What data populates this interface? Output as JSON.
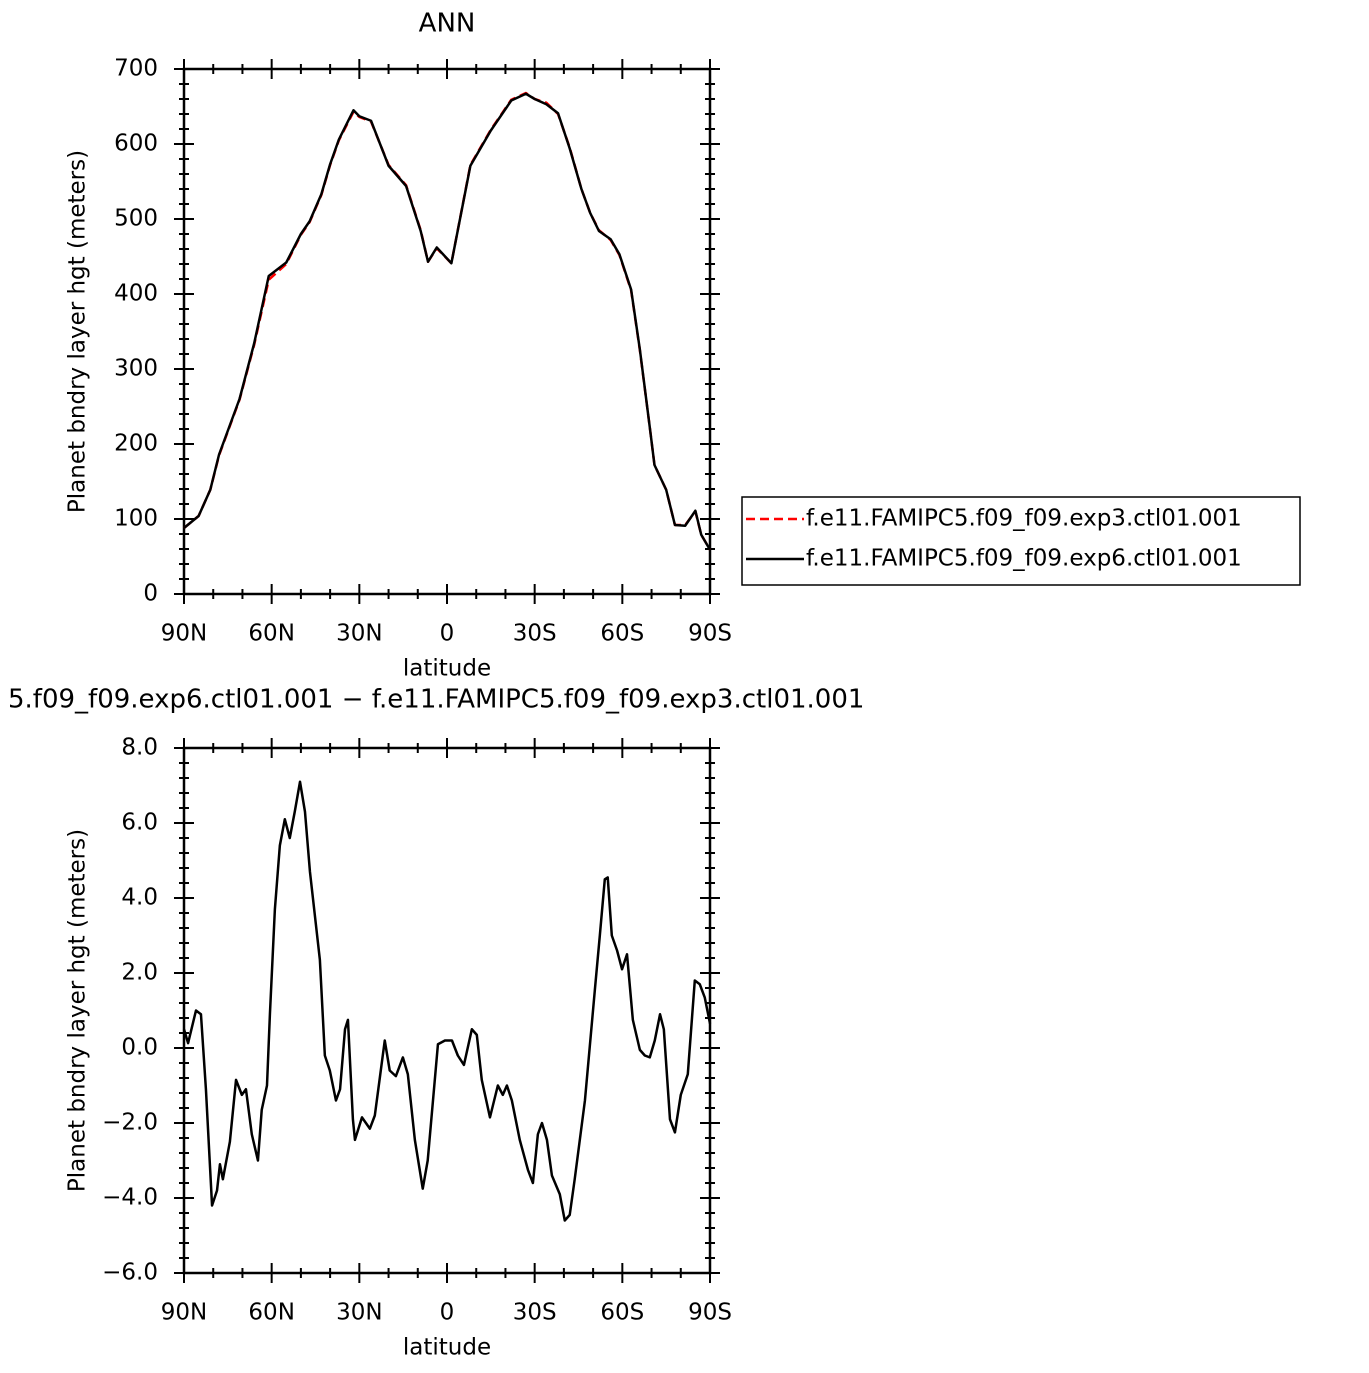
{
  "chart_data": [
    {
      "type": "line",
      "title": "ANN",
      "xlabel": "latitude",
      "ylabel": "Planet bndry layer hgt (meters)",
      "x": [
        90,
        85,
        81,
        78,
        71,
        66,
        61,
        55,
        50,
        47,
        43,
        40,
        37,
        32,
        30,
        26,
        20,
        14,
        9,
        6.5,
        3.5,
        -1.5,
        -8,
        -15,
        -22,
        -27,
        -30,
        -34,
        -38,
        -42,
        -46,
        -49,
        -52,
        -56,
        -59,
        -63,
        -66,
        -69.5,
        -71,
        -75,
        -78,
        -81.5,
        -85,
        -87,
        -90
      ],
      "xlim": [
        90,
        -90
      ],
      "xticks": [
        {
          "value": 90,
          "label": "90N"
        },
        {
          "value": 60,
          "label": "60N"
        },
        {
          "value": 30,
          "label": "30N"
        },
        0,
        {
          "value": -30,
          "label": "30S"
        },
        {
          "value": -60,
          "label": "60S"
        },
        {
          "value": -90,
          "label": "90S"
        }
      ],
      "ylim": [
        0,
        700
      ],
      "yticks": [
        0,
        100,
        200,
        300,
        400,
        500,
        600,
        700
      ],
      "legend": "right",
      "series": [
        {
          "name": "f.e11.FAMIPC5.f09_f09.exp3.ctl01.001",
          "color": "#ff0000",
          "linestyle": "dashed",
          "values": [
            88,
            104,
            139,
            185,
            259,
            332,
            419,
            440,
            479,
            496,
            532,
            572,
            605,
            643,
            636,
            630,
            572,
            545,
            485,
            443,
            461,
            441,
            572,
            619,
            659,
            668,
            660,
            655,
            640,
            595,
            540,
            508,
            485,
            472,
            452,
            405,
            325,
            219,
            172,
            139,
            92,
            92,
            110,
            79,
            59
          ]
        },
        {
          "name": "f.e11.FAMIPC5.f09_f09.exp6.ctl01.001",
          "color": "#000000",
          "linestyle": "solid",
          "values": [
            88,
            104,
            139,
            186,
            260,
            334,
            424,
            442,
            480,
            497,
            533,
            573,
            606,
            645,
            637,
            631,
            571,
            544,
            484,
            443,
            462,
            441,
            571,
            618,
            658,
            667,
            660,
            653,
            641,
            594,
            540,
            508,
            484,
            473,
            453,
            406,
            326,
            219,
            172,
            139,
            92,
            91,
            111,
            79,
            59
          ]
        }
      ]
    },
    {
      "type": "line",
      "title": "5.f09_f09.exp6.ctl01.001 − f.e11.FAMIPC5.f09_f09.exp3.ctl01.001",
      "xlabel": "latitude",
      "ylabel": "Planet bndry layer hgt (meters)",
      "x": [
        90,
        88.6,
        85.9,
        84.2,
        82.5,
        80.4,
        78.7,
        77.7,
        76.7,
        74.3,
        72.2,
        70.2,
        68.8,
        66.8,
        64.7,
        63.4,
        61.6,
        60.6,
        58.9,
        57.2,
        55.5,
        53.8,
        52.1,
        50.3,
        48.6,
        46.9,
        43.5,
        41.8,
        40.1,
        38.0,
        36.6,
        34.9,
        33.9,
        32.2,
        31.5,
        29.1,
        26.4,
        24.7,
        21.3,
        19.6,
        17.5,
        15.1,
        13.4,
        11.0,
        8.3,
        6.6,
        3.1,
        0.7,
        -1.7,
        -3.7,
        -5.8,
        -8.5,
        -10.2,
        -11.9,
        -14.7,
        -17.4,
        -19.1,
        -20.5,
        -22.2,
        -24.9,
        -27.7,
        -29.4,
        -31.1,
        -32.5,
        -34.2,
        -35.9,
        -38.6,
        -40.3,
        -42.0,
        -43.7,
        -47.2,
        -50.6,
        -52.3,
        -54.0,
        -55.0,
        -56.4,
        -58.2,
        -59.9,
        -61.6,
        -63.6,
        -66.0,
        -67.7,
        -69.4,
        -71.1,
        -72.9,
        -74.2,
        -76.3,
        -78.0,
        -80.0,
        -82.4,
        -84.8,
        -86.5,
        -88.2,
        -90
      ],
      "xlim": [
        90,
        -90
      ],
      "xticks": [
        {
          "value": 90,
          "label": "90N"
        },
        {
          "value": 60,
          "label": "60N"
        },
        {
          "value": 30,
          "label": "30N"
        },
        0,
        {
          "value": -30,
          "label": "30S"
        },
        {
          "value": -60,
          "label": "60S"
        },
        {
          "value": -90,
          "label": "90S"
        }
      ],
      "ylim": [
        -6,
        8
      ],
      "yticks": [
        {
          "value": -6,
          "label": "−6.0"
        },
        {
          "value": -4,
          "label": "−4.0"
        },
        {
          "value": -2,
          "label": "−2.0"
        },
        {
          "value": 0,
          "label": "0.0"
        },
        {
          "value": 2,
          "label": "2.0"
        },
        {
          "value": 4,
          "label": "4.0"
        },
        {
          "value": 6,
          "label": "6.0"
        },
        {
          "value": 8,
          "label": "8.0"
        }
      ],
      "series": [
        {
          "color": "#000000",
          "linestyle": "solid",
          "values": [
            0.5,
            0.13,
            1.0,
            0.9,
            -1.1,
            -4.2,
            -3.8,
            -3.1,
            -3.5,
            -2.5,
            -0.85,
            -1.25,
            -1.1,
            -2.3,
            -3.0,
            -1.65,
            -1.0,
            0.9,
            3.7,
            5.4,
            6.1,
            5.6,
            6.3,
            7.1,
            6.3,
            4.7,
            2.35,
            -0.2,
            -0.6,
            -1.4,
            -1.1,
            0.5,
            0.75,
            -1.9,
            -2.45,
            -1.85,
            -2.15,
            -1.8,
            0.2,
            -0.6,
            -0.75,
            -0.25,
            -0.7,
            -2.45,
            -3.75,
            -3.0,
            0.1,
            0.2,
            0.2,
            -0.2,
            -0.45,
            0.5,
            0.35,
            -0.85,
            -1.85,
            -1.0,
            -1.25,
            -1.0,
            -1.4,
            -2.45,
            -3.25,
            -3.6,
            -2.3,
            -2.0,
            -2.45,
            -3.4,
            -3.9,
            -4.6,
            -4.45,
            -3.5,
            -1.4,
            1.55,
            3.0,
            4.5,
            4.55,
            3.0,
            2.6,
            2.1,
            2.5,
            0.75,
            -0.05,
            -0.2,
            -0.25,
            0.2,
            0.9,
            0.5,
            -1.9,
            -2.25,
            -1.25,
            -0.7,
            1.8,
            1.7,
            1.35,
            0.65
          ]
        }
      ]
    }
  ]
}
